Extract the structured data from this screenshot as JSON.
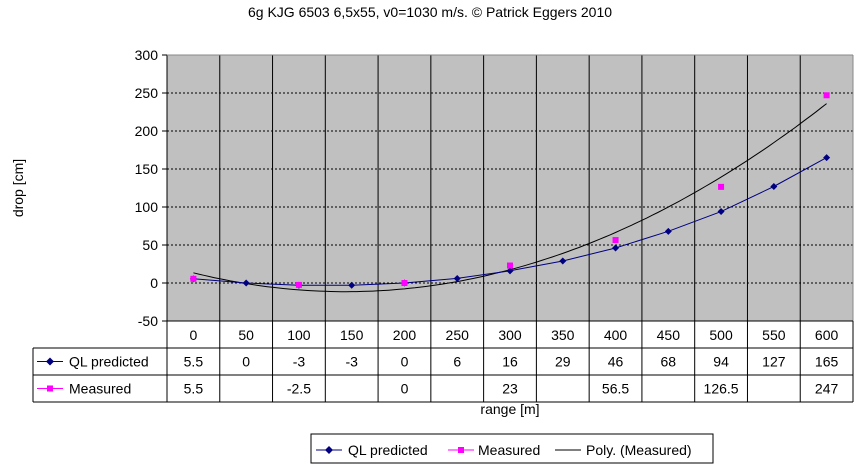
{
  "chart_data": {
    "type": "line",
    "title": "6g KJG 6503 6,5x55, v0=1030 m/s. © Patrick Eggers 2010",
    "xlabel": "range [m]",
    "ylabel": "drop [cm]",
    "ylim": [
      -50,
      300
    ],
    "yticks": [
      -50,
      0,
      50,
      100,
      150,
      200,
      250,
      300
    ],
    "categories": [
      "0",
      "50",
      "100",
      "150",
      "200",
      "250",
      "300",
      "350",
      "400",
      "450",
      "500",
      "550",
      "600"
    ],
    "series": [
      {
        "name": "QL predicted",
        "color": "#000080",
        "marker": "diamond",
        "values": [
          5.5,
          0,
          -3,
          -3,
          0,
          6,
          16,
          29,
          46,
          68,
          94,
          127,
          165
        ]
      },
      {
        "name": "Measured",
        "color": "#ff00ff",
        "marker": "square",
        "values": [
          5.5,
          null,
          -2.5,
          null,
          0,
          null,
          23,
          null,
          56.5,
          null,
          126.5,
          null,
          247
        ]
      }
    ],
    "trendline": {
      "name": "Poly. (Measured)",
      "color": "#000000"
    },
    "table_cells": [
      [
        "5.5",
        "0",
        "-3",
        "-3",
        "0",
        "6",
        "16",
        "29",
        "46",
        "68",
        "94",
        "127",
        "165"
      ],
      [
        "5.5",
        "",
        "-2.5",
        "",
        "0",
        "",
        "23",
        "",
        "56.5",
        "",
        "126.5",
        "",
        "247"
      ]
    ],
    "plot_background": "#c0c0c0",
    "grid": true,
    "legend_position": "bottom"
  }
}
